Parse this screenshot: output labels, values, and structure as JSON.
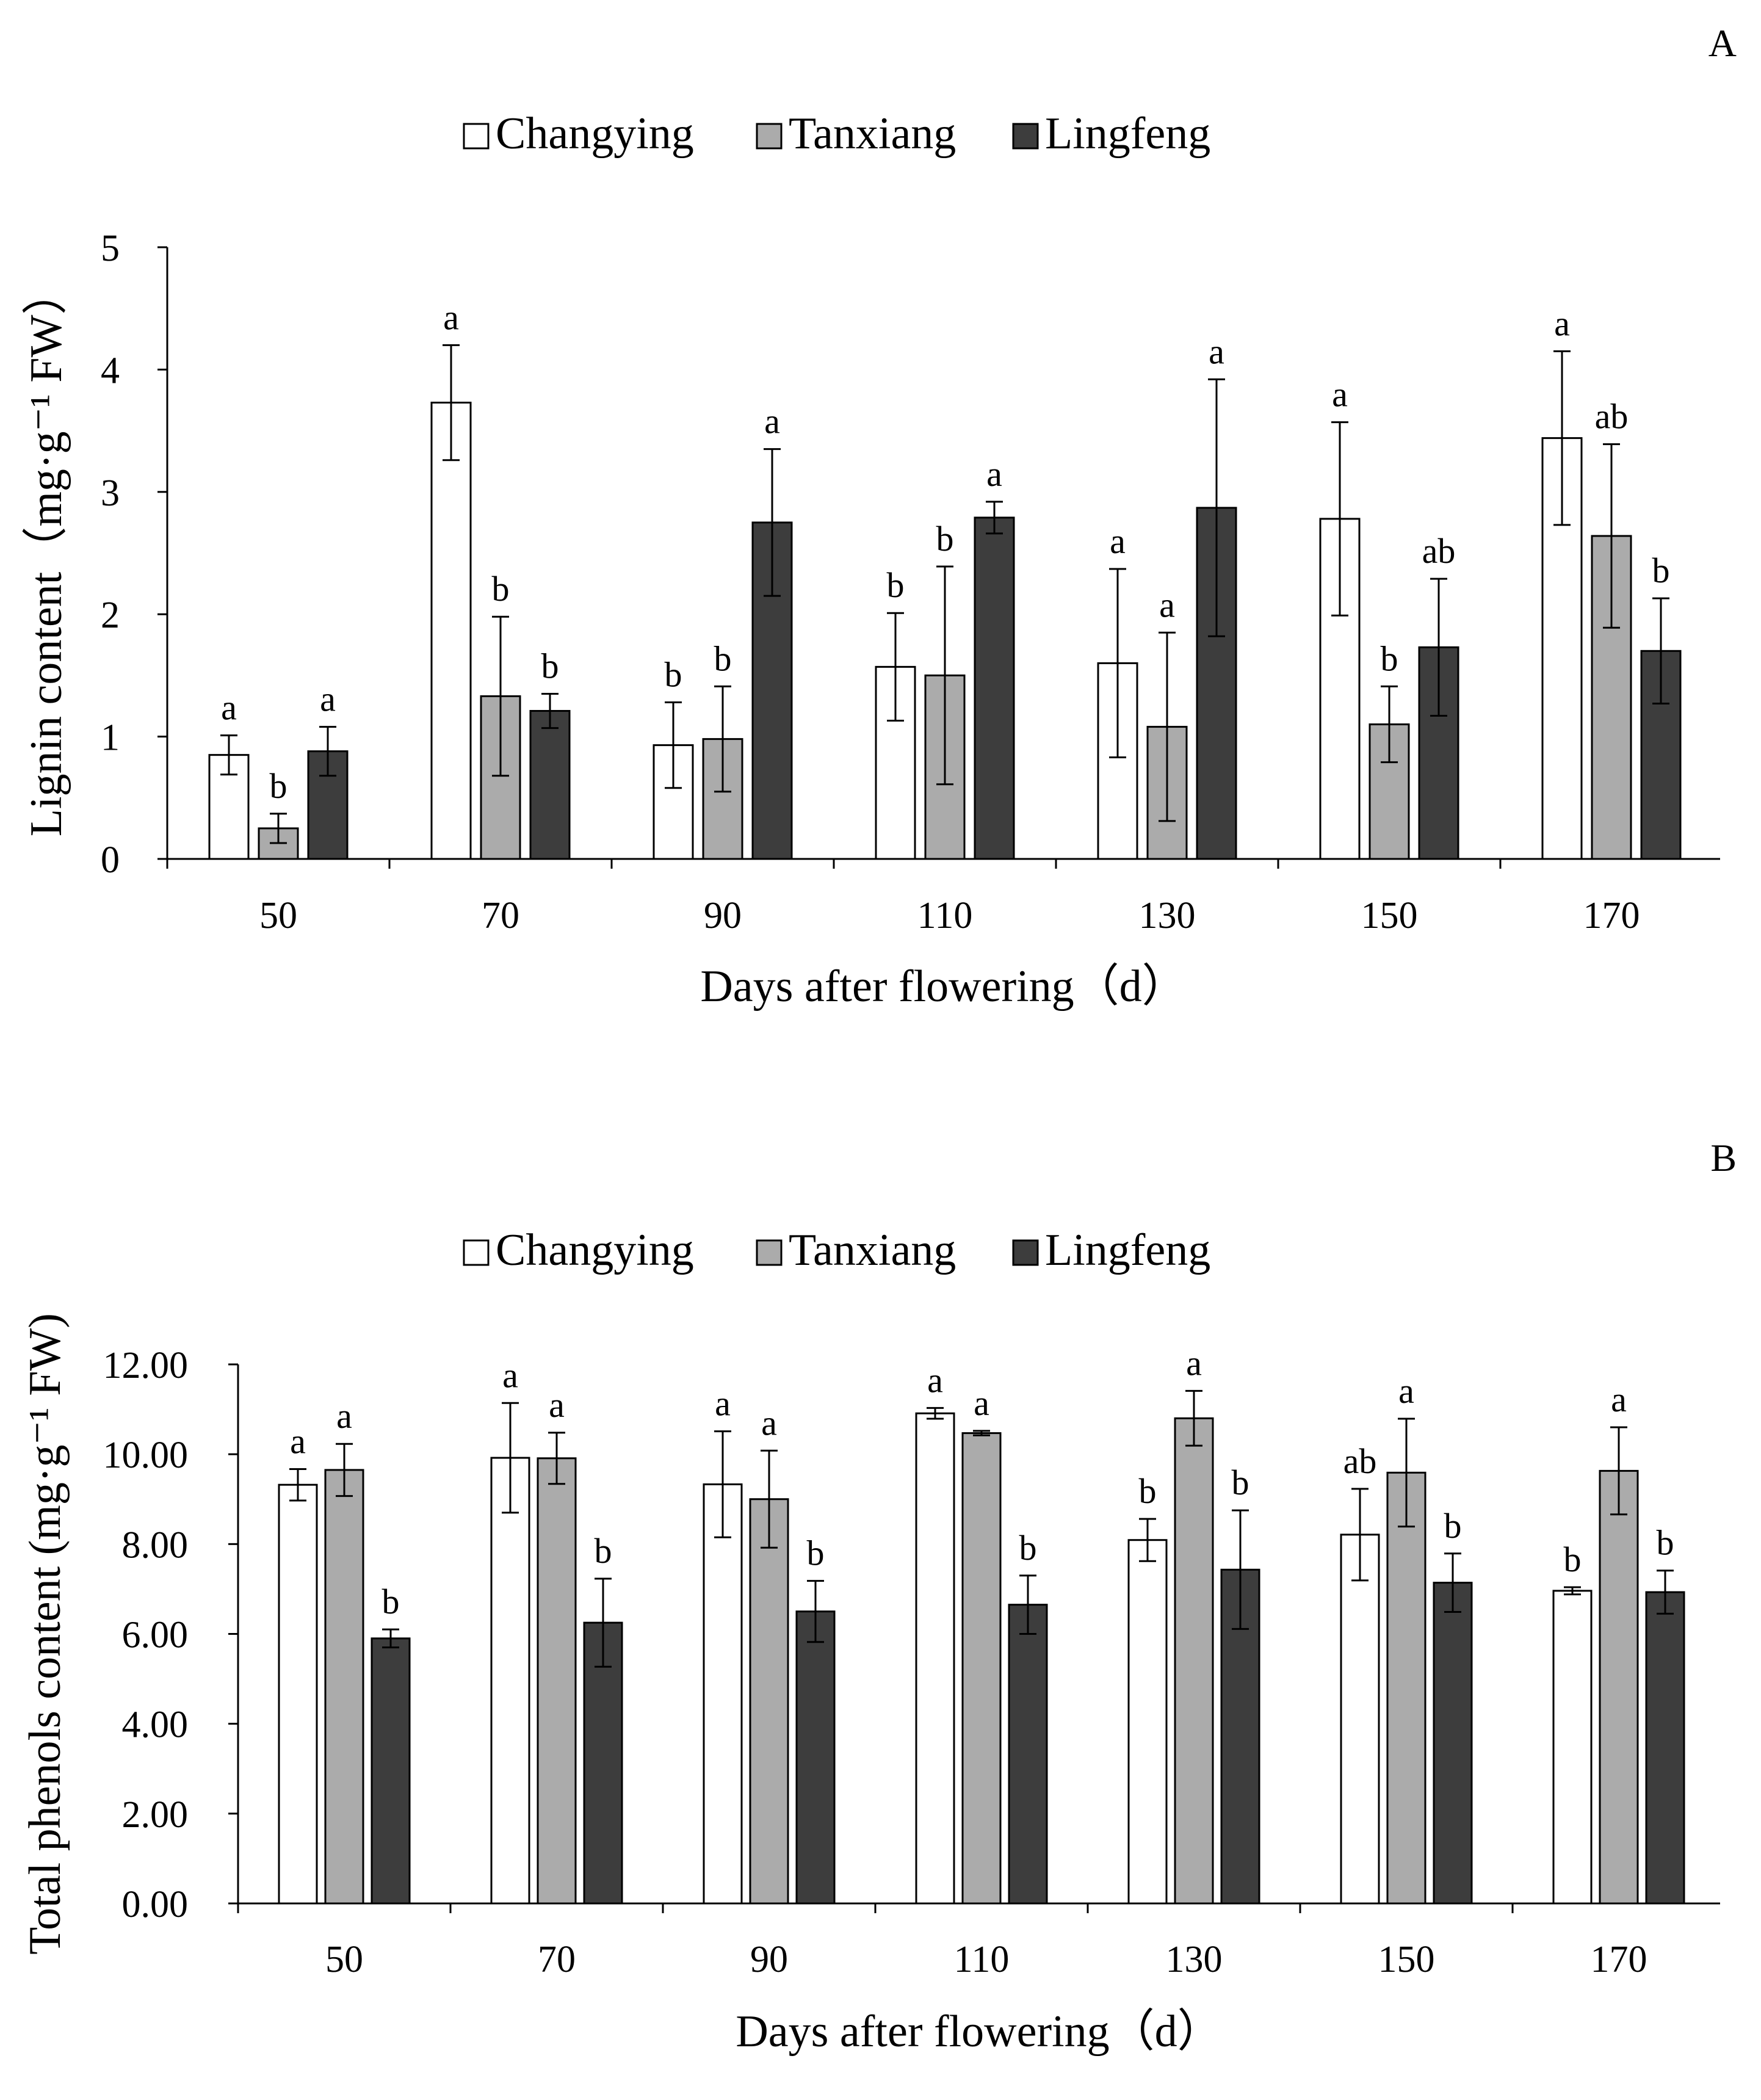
{
  "chart_data": [
    {
      "panel": "A",
      "type": "bar",
      "title": "",
      "xlabel": "Days after flowering（d）",
      "ylabel": "Lignin content（mg·g⁻¹ FW）",
      "categories": [
        "50",
        "70",
        "90",
        "110",
        "130",
        "150",
        "170"
      ],
      "ylim": [
        0,
        5
      ],
      "yticks": [
        0,
        1,
        2,
        3,
        4,
        5
      ],
      "ytick_labels": [
        "0",
        "1",
        "2",
        "3",
        "4",
        "5"
      ],
      "legend_position": "top-center",
      "series": [
        {
          "name": "Changying",
          "color": "#ffffff",
          "values": [
            0.85,
            3.73,
            0.93,
            1.57,
            1.6,
            2.78,
            3.44
          ],
          "errors": [
            0.16,
            0.47,
            0.35,
            0.44,
            0.77,
            0.79,
            0.71
          ],
          "letters": [
            "a",
            "a",
            "b",
            "b",
            "a",
            "a",
            "a"
          ]
        },
        {
          "name": "Tanxiang",
          "color": "#ababab",
          "values": [
            0.25,
            1.33,
            0.98,
            1.5,
            1.08,
            1.1,
            2.64
          ],
          "errors": [
            0.12,
            0.65,
            0.43,
            0.89,
            0.77,
            0.31,
            0.75
          ],
          "letters": [
            "b",
            "b",
            "b",
            "b",
            "a",
            "b",
            "ab"
          ]
        },
        {
          "name": "Lingfeng",
          "color": "#3d3d3d",
          "values": [
            0.88,
            1.21,
            2.75,
            2.79,
            2.87,
            1.73,
            1.7
          ],
          "errors": [
            0.2,
            0.14,
            0.6,
            0.13,
            1.05,
            0.56,
            0.43
          ],
          "letters": [
            "a",
            "b",
            "a",
            "a",
            "a",
            "ab",
            "b"
          ]
        }
      ]
    },
    {
      "panel": "B",
      "type": "bar",
      "title": "",
      "xlabel": "Days after flowering（d）",
      "ylabel": "Total phenols content (mg·g⁻¹ FW)",
      "categories": [
        "50",
        "70",
        "90",
        "110",
        "130",
        "150",
        "170"
      ],
      "ylim": [
        0,
        12
      ],
      "yticks": [
        0,
        2,
        4,
        6,
        8,
        10,
        12
      ],
      "ytick_labels": [
        "0.00",
        "2.00",
        "4.00",
        "6.00",
        "8.00",
        "10.00",
        "12.00"
      ],
      "legend_position": "top-center",
      "series": [
        {
          "name": "Changying",
          "color": "#ffffff",
          "values": [
            9.32,
            9.92,
            9.33,
            10.91,
            8.09,
            8.21,
            6.96
          ],
          "errors": [
            0.35,
            1.22,
            1.18,
            0.12,
            0.47,
            1.02,
            0.08
          ],
          "letters": [
            "a",
            "a",
            "a",
            "a",
            "b",
            "ab",
            "b"
          ]
        },
        {
          "name": "Tanxiang",
          "color": "#ababab",
          "values": [
            9.65,
            9.91,
            9.0,
            10.47,
            10.8,
            9.59,
            9.63
          ],
          "errors": [
            0.58,
            0.57,
            1.08,
            0.05,
            0.61,
            1.2,
            0.97
          ],
          "letters": [
            "a",
            "a",
            "a",
            "a",
            "a",
            "a",
            "a"
          ]
        },
        {
          "name": "Lingfeng",
          "color": "#3d3d3d",
          "values": [
            5.9,
            6.25,
            6.5,
            6.65,
            7.43,
            7.14,
            6.93
          ],
          "errors": [
            0.2,
            0.98,
            0.68,
            0.65,
            1.32,
            0.65,
            0.48
          ],
          "letters": [
            "b",
            "b",
            "b",
            "b",
            "b",
            "b",
            "b"
          ]
        }
      ]
    }
  ]
}
